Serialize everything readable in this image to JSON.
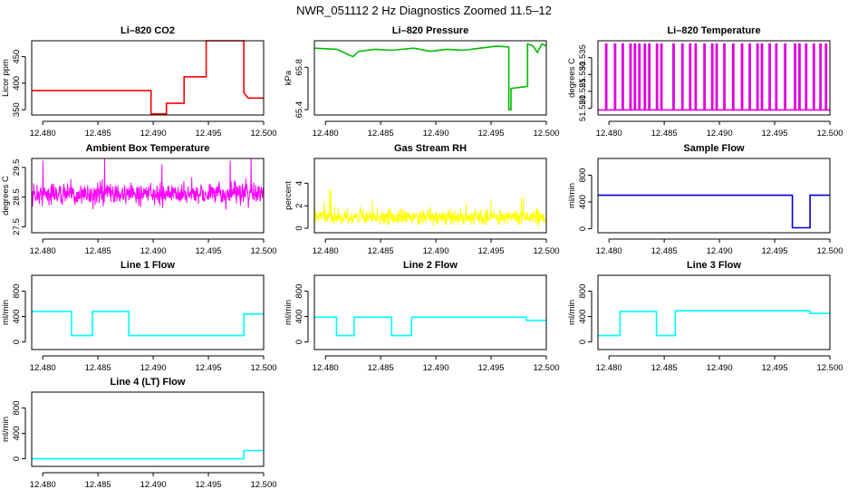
{
  "title": "NWR_051112  2 Hz Diagnostics Zoomed 11.5–12",
  "chart_data": [
    {
      "type": "line",
      "title": "Li–820 CO2",
      "ylabel": "Licor ppm",
      "color": "#ff0000",
      "xlim": [
        12.479,
        12.5
      ],
      "ylim": [
        340,
        480
      ],
      "xticks": [
        12.48,
        12.485,
        12.49,
        12.495,
        12.5
      ],
      "xtick_labels": [
        "12.480",
        "12.485",
        "12.490",
        "12.495",
        "12.500"
      ],
      "yticks": [
        350,
        400,
        450
      ],
      "ytick_labels": [
        "350",
        "400",
        "450"
      ],
      "x": [
        12.479,
        12.4898,
        12.4898,
        12.4912,
        12.4912,
        12.4928,
        12.4928,
        12.4948,
        12.4948,
        12.4982,
        12.4982,
        12.4986,
        12.5
      ],
      "y": [
        386,
        386,
        342,
        342,
        362,
        362,
        412,
        412,
        480,
        480,
        382,
        372,
        372
      ]
    },
    {
      "type": "line",
      "title": "Li–820 Pressure",
      "ylabel": "kPa",
      "color": "#00bb00",
      "xlim": [
        12.479,
        12.5
      ],
      "ylim": [
        65.35,
        66.05
      ],
      "xticks": [
        12.48,
        12.485,
        12.49,
        12.495,
        12.5
      ],
      "xtick_labels": [
        "12.480",
        "12.485",
        "12.490",
        "12.495",
        "12.500"
      ],
      "yticks": [
        65.4,
        65.8
      ],
      "ytick_labels": [
        "65.4",
        "65.8"
      ],
      "x": [
        12.479,
        12.481,
        12.4825,
        12.483,
        12.4845,
        12.486,
        12.488,
        12.4895,
        12.491,
        12.4925,
        12.494,
        12.4955,
        12.4966,
        12.4966,
        12.4968,
        12.4968,
        12.4983,
        12.4983,
        12.4988,
        12.4992,
        12.4996,
        12.5
      ],
      "y": [
        65.98,
        65.97,
        65.9,
        65.95,
        65.97,
        65.96,
        65.98,
        65.95,
        65.97,
        65.96,
        65.98,
        66.0,
        65.99,
        65.4,
        65.4,
        65.6,
        65.62,
        66.02,
        66.0,
        65.94,
        66.02,
        66.0
      ]
    },
    {
      "type": "line",
      "title": "Li–820 Temperature",
      "ylabel": "degrees C",
      "color": "#e000e0",
      "xlim": [
        12.479,
        12.5
      ],
      "ylim": [
        51.518,
        51.54
      ],
      "xticks": [
        12.48,
        12.485,
        12.49,
        12.495,
        12.5
      ],
      "xtick_labels": [
        "12.480",
        "12.485",
        "12.490",
        "12.495",
        "12.500"
      ],
      "yticks": [
        51.52,
        51.525,
        51.53,
        51.535
      ],
      "ytick_labels": [
        "51.520",
        "51.525",
        "51.530",
        "51.535"
      ],
      "base": 51.5195,
      "spike": 51.539,
      "spike_x": [
        12.4797,
        12.4805,
        12.4812,
        12.4819,
        12.4823,
        12.4827,
        12.4832,
        12.4836,
        12.4843,
        12.4847,
        12.4858,
        12.4866,
        12.4873,
        12.4878,
        12.4886,
        12.4893,
        12.4897,
        12.4904,
        12.4912,
        12.492,
        12.4927,
        12.4934,
        12.4938,
        12.4945,
        12.4951,
        12.4959,
        12.4968,
        12.4972,
        12.4978,
        12.4985,
        12.4991,
        12.4996
      ]
    },
    {
      "type": "line",
      "title": "Ambient Box Temperature",
      "ylabel": "degrees C",
      "color": "#ff00ff",
      "xlim": [
        12.479,
        12.5
      ],
      "ylim": [
        27.3,
        29.8
      ],
      "xticks": [
        12.48,
        12.485,
        12.49,
        12.495,
        12.5
      ],
      "xtick_labels": [
        "12.480",
        "12.485",
        "12.490",
        "12.495",
        "12.500"
      ],
      "yticks": [
        27.5,
        28.5,
        29.5
      ],
      "ytick_labels": [
        "27.5",
        "28.5",
        "29.5"
      ],
      "mean": 28.6,
      "noise_sd": 0.25
    },
    {
      "type": "line",
      "title": "Gas Stream RH",
      "ylabel": "percent",
      "color": "#ffff00",
      "xlim": [
        12.479,
        12.5
      ],
      "ylim": [
        -0.4,
        6.2
      ],
      "xticks": [
        12.48,
        12.485,
        12.49,
        12.495,
        12.5
      ],
      "xtick_labels": [
        "12.480",
        "12.485",
        "12.490",
        "12.495",
        "12.500"
      ],
      "yticks": [
        0,
        2,
        4
      ],
      "ytick_labels": [
        "0",
        "2",
        "4"
      ],
      "mean": 1.0,
      "noise_sd": 0.45
    },
    {
      "type": "line",
      "title": "Sample Flow",
      "ylabel": "ml/min",
      "color": "#0000cc",
      "xlim": [
        12.479,
        12.5
      ],
      "ylim": [
        -60,
        1050
      ],
      "xticks": [
        12.48,
        12.485,
        12.49,
        12.495,
        12.5
      ],
      "xtick_labels": [
        "12.480",
        "12.485",
        "12.490",
        "12.495",
        "12.500"
      ],
      "yticks": [
        0,
        400,
        800
      ],
      "ytick_labels": [
        "0",
        "400",
        "800"
      ],
      "x": [
        12.479,
        12.4966,
        12.4966,
        12.4982,
        12.4982,
        12.5
      ],
      "y": [
        500,
        500,
        15,
        15,
        500,
        500
      ]
    },
    {
      "type": "line",
      "title": "Line 1 Flow",
      "ylabel": "ml/min",
      "color": "#00ffff",
      "xlim": [
        12.479,
        12.5
      ],
      "ylim": [
        -120,
        1050
      ],
      "xticks": [
        12.48,
        12.485,
        12.49,
        12.495,
        12.5
      ],
      "xtick_labels": [
        "12.480",
        "12.485",
        "12.490",
        "12.495",
        "12.500"
      ],
      "yticks": [
        0,
        400,
        800
      ],
      "ytick_labels": [
        "0",
        "400",
        "800"
      ],
      "x": [
        12.479,
        12.4826,
        12.4826,
        12.4845,
        12.4845,
        12.4878,
        12.4878,
        12.4982,
        12.4982,
        12.5
      ],
      "y": [
        480,
        480,
        100,
        100,
        480,
        480,
        100,
        100,
        440,
        440
      ]
    },
    {
      "type": "line",
      "title": "Line 2 Flow",
      "ylabel": "ml/min",
      "color": "#00ffff",
      "xlim": [
        12.479,
        12.5
      ],
      "ylim": [
        -120,
        1050
      ],
      "xticks": [
        12.48,
        12.485,
        12.49,
        12.495,
        12.5
      ],
      "xtick_labels": [
        "12.480",
        "12.485",
        "12.490",
        "12.495",
        "12.500"
      ],
      "yticks": [
        0,
        400,
        800
      ],
      "ytick_labels": [
        "0",
        "400",
        "800"
      ],
      "x": [
        12.479,
        12.481,
        12.481,
        12.4826,
        12.4826,
        12.486,
        12.486,
        12.4878,
        12.4878,
        12.4982,
        12.4982,
        12.5
      ],
      "y": [
        390,
        390,
        100,
        100,
        390,
        390,
        100,
        100,
        390,
        390,
        340,
        340
      ]
    },
    {
      "type": "line",
      "title": "Line 3 Flow",
      "ylabel": "ml/min",
      "color": "#00ffff",
      "xlim": [
        12.479,
        12.5
      ],
      "ylim": [
        -120,
        1050
      ],
      "xticks": [
        12.48,
        12.485,
        12.49,
        12.495,
        12.5
      ],
      "xtick_labels": [
        "12.480",
        "12.485",
        "12.490",
        "12.495",
        "12.500"
      ],
      "yticks": [
        0,
        400,
        800
      ],
      "ytick_labels": [
        "0",
        "400",
        "800"
      ],
      "x": [
        12.479,
        12.481,
        12.481,
        12.4843,
        12.4843,
        12.486,
        12.486,
        12.4982,
        12.4982,
        12.5
      ],
      "y": [
        100,
        100,
        480,
        480,
        100,
        100,
        490,
        490,
        450,
        450
      ]
    },
    {
      "type": "line",
      "title": "Line 4 (LT) Flow",
      "ylabel": "ml/min",
      "color": "#00ffff",
      "xlim": [
        12.479,
        12.5
      ],
      "ylim": [
        -120,
        1050
      ],
      "xticks": [
        12.48,
        12.485,
        12.49,
        12.495,
        12.5
      ],
      "xtick_labels": [
        "12.480",
        "12.485",
        "12.490",
        "12.495",
        "12.500"
      ],
      "yticks": [
        0,
        400,
        800
      ],
      "ytick_labels": [
        "0",
        "400",
        "800"
      ],
      "x": [
        12.479,
        12.4982,
        12.4982,
        12.5
      ],
      "y": [
        0,
        0,
        130,
        130
      ]
    }
  ]
}
